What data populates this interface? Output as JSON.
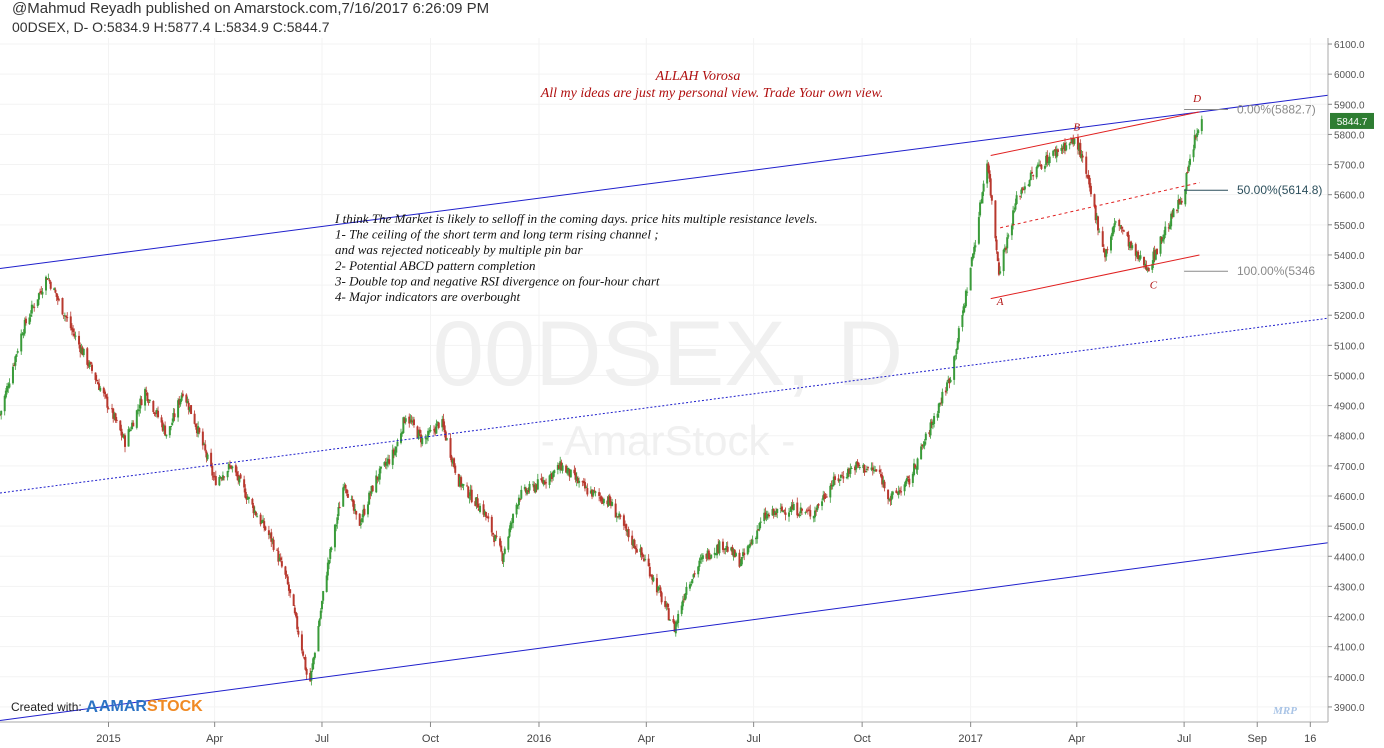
{
  "header": {
    "published": "@Mahmud Reyadh published on Amarstock.com,7/16/2017 6:26:09 PM",
    "ohlc": "00DSEX, D- O:5834.9 H:5877.4 L:5834.9 C:5844.7"
  },
  "watermark": {
    "symbol": "00DSEX, D",
    "brand": "- AmarStock -"
  },
  "credit": {
    "label": "Created with:",
    "logo_a": "A",
    "logo_amar": "AMAR",
    "logo_stock": "STOCK"
  },
  "signature": "MRP",
  "annotations": {
    "title": "ALLAH Vorosa",
    "subtitle": "All my ideas are just my personal view. Trade Your own view.",
    "analysis": [
      "I think The Market is likely to selloff in the coming days. price hits multiple resistance levels.",
      "1- The ceiling of the short term and long term rising channel  ;",
      "      and was rejected noticeably by multiple pin bar",
      "2- Potential ABCD pattern completion",
      "3- Double top and negative RSI  divergence on four-hour chart",
      "4- Major indicators are overbought"
    ],
    "points": [
      "A",
      "B",
      "C",
      "D"
    ]
  },
  "fib_labels": [
    "0.00%(5882.7)",
    "50.00%(5614.8)",
    "100.00%(5346"
  ],
  "colors": {
    "up": "#3a9b3a",
    "down": "#b8382e",
    "channel": "#1f1fcc",
    "pattern": "#e02020",
    "annotation": "#b01010",
    "fib": "#8a8a8a",
    "fib_mid": "#2c4f5c",
    "price_tag": "#2e7d32"
  },
  "chart_data": {
    "type": "candlestick",
    "symbol": "00DSEX",
    "timeframe": "D",
    "last_price": "5844.7",
    "ylim": [
      3850,
      6120
    ],
    "y_ticks": [
      "6100.0",
      "6000.0",
      "5900.0",
      "5800.0",
      "5700.0",
      "5600.0",
      "5500.0",
      "5400.0",
      "5300.0",
      "5200.0",
      "5100.0",
      "5000.0",
      "4900.0",
      "4800.0",
      "4700.0",
      "4600.0",
      "4500.0",
      "4400.0",
      "4300.0",
      "4200.0",
      "4100.0",
      "4000.0",
      "3900.0"
    ],
    "x_range": [
      "2014-10-01",
      "2017-10-31"
    ],
    "x_ticks": [
      {
        "label": "2015",
        "date": "2015-01-01"
      },
      {
        "label": "Apr",
        "date": "2015-04-01"
      },
      {
        "label": "Jul",
        "date": "2015-07-01"
      },
      {
        "label": "Oct",
        "date": "2015-10-01"
      },
      {
        "label": "2016",
        "date": "2016-01-01"
      },
      {
        "label": "Apr",
        "date": "2016-04-01"
      },
      {
        "label": "Jul",
        "date": "2016-07-01"
      },
      {
        "label": "Oct",
        "date": "2016-10-01"
      },
      {
        "label": "2017",
        "date": "2017-01-01"
      },
      {
        "label": "Apr",
        "date": "2017-04-01"
      },
      {
        "label": "Jul",
        "date": "2017-07-01"
      },
      {
        "label": "Sep",
        "date": "2017-09-01"
      },
      {
        "label": "16",
        "date": "2017-10-16"
      }
    ],
    "close_path": [
      [
        "2014-10-01",
        4870
      ],
      [
        "2014-10-20",
        5150
      ],
      [
        "2014-11-10",
        5330
      ],
      [
        "2014-12-01",
        5150
      ],
      [
        "2014-12-20",
        5000
      ],
      [
        "2015-01-15",
        4780
      ],
      [
        "2015-02-01",
        4950
      ],
      [
        "2015-02-20",
        4800
      ],
      [
        "2015-03-05",
        4950
      ],
      [
        "2015-03-15",
        4850
      ],
      [
        "2015-04-01",
        4650
      ],
      [
        "2015-04-15",
        4700
      ],
      [
        "2015-05-05",
        4550
      ],
      [
        "2015-05-20",
        4450
      ],
      [
        "2015-06-01",
        4320
      ],
      [
        "2015-06-15",
        4080
      ],
      [
        "2015-06-20",
        3960
      ],
      [
        "2015-07-05",
        4350
      ],
      [
        "2015-07-20",
        4650
      ],
      [
        "2015-08-01",
        4500
      ],
      [
        "2015-08-15",
        4650
      ],
      [
        "2015-09-01",
        4750
      ],
      [
        "2015-09-10",
        4870
      ],
      [
        "2015-09-25",
        4780
      ],
      [
        "2015-10-10",
        4850
      ],
      [
        "2015-10-25",
        4650
      ],
      [
        "2015-11-15",
        4550
      ],
      [
        "2015-12-01",
        4400
      ],
      [
        "2015-12-15",
        4600
      ],
      [
        "2016-01-05",
        4650
      ],
      [
        "2016-01-20",
        4700
      ],
      [
        "2016-02-10",
        4620
      ],
      [
        "2016-03-01",
        4580
      ],
      [
        "2016-03-15",
        4480
      ],
      [
        "2016-04-01",
        4380
      ],
      [
        "2016-04-15",
        4250
      ],
      [
        "2016-04-25",
        4160
      ],
      [
        "2016-05-05",
        4300
      ],
      [
        "2016-05-20",
        4400
      ],
      [
        "2016-06-05",
        4440
      ],
      [
        "2016-06-20",
        4380
      ],
      [
        "2016-07-10",
        4530
      ],
      [
        "2016-08-01",
        4560
      ],
      [
        "2016-08-20",
        4540
      ],
      [
        "2016-09-05",
        4640
      ],
      [
        "2016-09-25",
        4700
      ],
      [
        "2016-10-15",
        4680
      ],
      [
        "2016-10-25",
        4590
      ],
      [
        "2016-11-10",
        4650
      ],
      [
        "2016-11-25",
        4800
      ],
      [
        "2016-12-05",
        4900
      ],
      [
        "2016-12-15",
        5000
      ],
      [
        "2016-12-25",
        5200
      ],
      [
        "2017-01-05",
        5450
      ],
      [
        "2017-01-15",
        5720
      ],
      [
        "2017-01-25",
        5350
      ],
      [
        "2017-02-01",
        5450
      ],
      [
        "2017-02-10",
        5600
      ],
      [
        "2017-03-01",
        5700
      ],
      [
        "2017-03-20",
        5760
      ],
      [
        "2017-04-01",
        5780
      ],
      [
        "2017-04-10",
        5650
      ],
      [
        "2017-04-25",
        5400
      ],
      [
        "2017-05-05",
        5520
      ],
      [
        "2017-05-20",
        5400
      ],
      [
        "2017-06-01",
        5360
      ],
      [
        "2017-06-15",
        5480
      ],
      [
        "2017-06-30",
        5600
      ],
      [
        "2017-07-10",
        5780
      ],
      [
        "2017-07-16",
        5845
      ]
    ],
    "channel_lines": [
      {
        "style": "solid",
        "points": [
          [
            "2014-10-01",
            5355
          ],
          [
            "2017-10-31",
            5930
          ]
        ]
      },
      {
        "style": "dotted",
        "points": [
          [
            "2014-10-01",
            4610
          ],
          [
            "2017-10-31",
            5190
          ]
        ]
      },
      {
        "style": "solid",
        "points": [
          [
            "2014-10-01",
            3855
          ],
          [
            "2017-10-31",
            4445
          ]
        ]
      }
    ],
    "abcd_pattern": [
      {
        "label": "A",
        "date": "2017-01-26",
        "price": 5300
      },
      {
        "label": "B",
        "date": "2017-04-01",
        "price": 5780
      },
      {
        "label": "C",
        "date": "2017-06-05",
        "price": 5355
      },
      {
        "label": "D",
        "date": "2017-07-12",
        "price": 5875
      }
    ],
    "pattern_lines": [
      {
        "style": "solid",
        "points": [
          [
            "2017-01-18",
            5730
          ],
          [
            "2017-07-14",
            5875
          ]
        ]
      },
      {
        "style": "dashed",
        "points": [
          [
            "2017-01-26",
            5490
          ],
          [
            "2017-07-14",
            5640
          ]
        ]
      },
      {
        "style": "solid",
        "points": [
          [
            "2017-01-18",
            5255
          ],
          [
            "2017-07-14",
            5400
          ]
        ]
      }
    ],
    "fib_levels": [
      {
        "pct": 0,
        "price": 5882.7
      },
      {
        "pct": 50,
        "price": 5614.8
      },
      {
        "pct": 100,
        "price": 5346
      }
    ]
  }
}
